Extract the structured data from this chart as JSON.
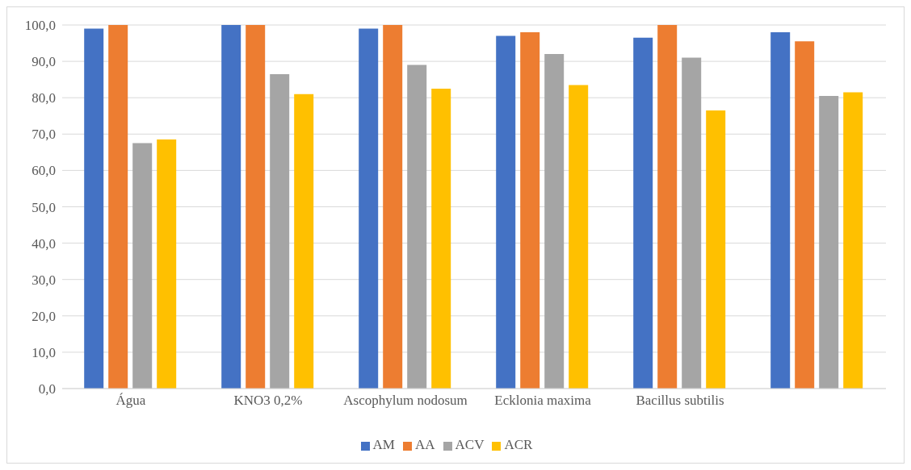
{
  "chart_data": {
    "type": "bar",
    "categories": [
      "Água",
      "KNO3  0,2%",
      "Ascophylum nodosum",
      "Ecklonia maxima",
      "Bacillus subtilis",
      null
    ],
    "series": [
      {
        "name": "AM",
        "color": "#4472c4",
        "values": [
          99,
          100,
          99,
          97,
          96.5,
          98
        ]
      },
      {
        "name": "AA",
        "color": "#ed7d31",
        "values": [
          100,
          100,
          100,
          98,
          100,
          95.5
        ]
      },
      {
        "name": "ACV",
        "color": "#a5a5a5",
        "values": [
          67.5,
          86.5,
          89,
          92,
          91,
          80.5
        ]
      },
      {
        "name": "ACR",
        "color": "#ffc000",
        "values": [
          68.5,
          81,
          82.5,
          83.5,
          76.5,
          81.5
        ]
      }
    ],
    "ylim": [
      0,
      100
    ],
    "yticks": [
      {
        "value": 0,
        "label": "0,0"
      },
      {
        "value": 10,
        "label": "10,0"
      },
      {
        "value": 20,
        "label": "20,0"
      },
      {
        "value": 30,
        "label": "30,0"
      },
      {
        "value": 40,
        "label": "40,0"
      },
      {
        "value": 50,
        "label": "50,0"
      },
      {
        "value": 60,
        "label": "60,0"
      },
      {
        "value": 70,
        "label": "70,0"
      },
      {
        "value": 80,
        "label": "80,0"
      },
      {
        "value": 90,
        "label": "90,0"
      },
      {
        "value": 100,
        "label": "100,0"
      }
    ],
    "grid": "y",
    "legend": "bottom"
  }
}
